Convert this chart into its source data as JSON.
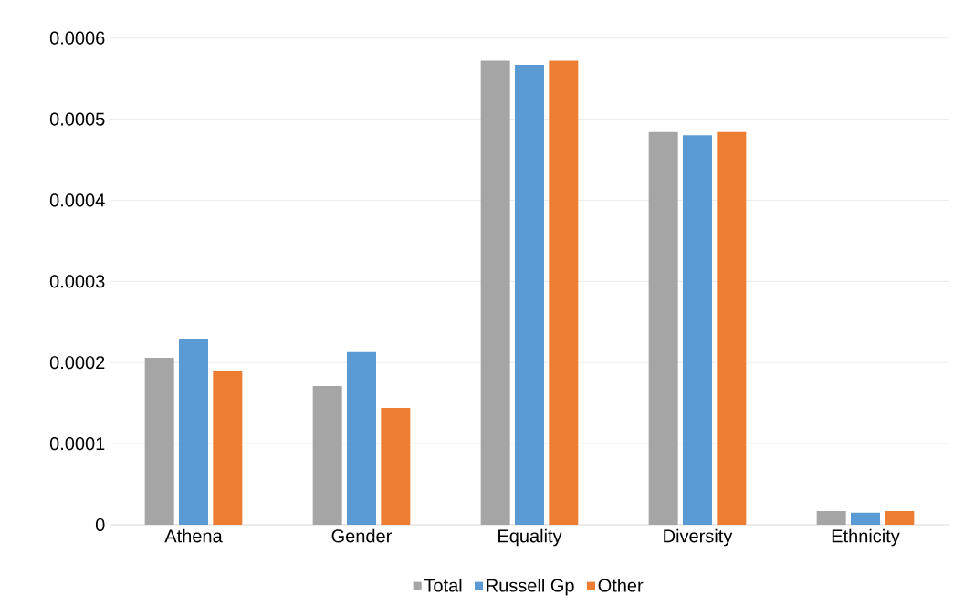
{
  "chart_data": {
    "type": "bar",
    "categories": [
      "Athena",
      "Gender",
      "Equality",
      "Diversity",
      "Ethnicity"
    ],
    "series": [
      {
        "name": "Total",
        "color": "#a5a5a5",
        "values": [
          0.000206,
          0.000171,
          0.000572,
          0.000484,
          1.7e-05
        ]
      },
      {
        "name": "Russell Gp",
        "color": "#5b9bd5",
        "values": [
          0.000229,
          0.000213,
          0.000567,
          0.00048,
          1.5e-05
        ]
      },
      {
        "name": "Other",
        "color": "#ed7d31",
        "values": [
          0.000189,
          0.000144,
          0.000572,
          0.000484,
          1.7e-05
        ]
      }
    ],
    "ylim": [
      0,
      0.0006
    ],
    "yticks": [
      0,
      0.0001,
      0.0002,
      0.0003,
      0.0004,
      0.0005,
      0.0006
    ],
    "grid": "y",
    "legend": "bottom"
  }
}
